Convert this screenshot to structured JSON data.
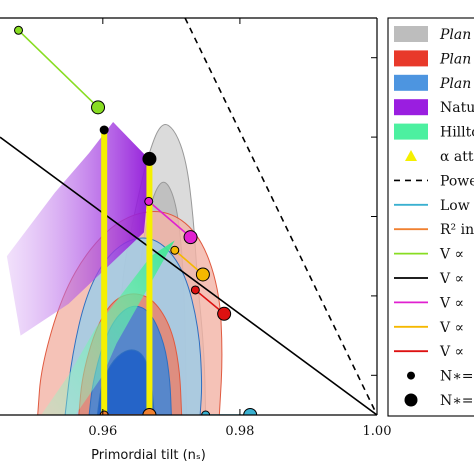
{
  "chart_data": {
    "type": "scatter",
    "title": "",
    "xlabel": "Primordial tilt (nₛ)",
    "ylabel": "",
    "xlim": [
      0.945,
      1.0
    ],
    "ylim": [
      0.0,
      0.1
    ],
    "xticks": [
      {
        "value": 0.96,
        "label": "0.96"
      },
      {
        "value": 0.98,
        "label": "0.98"
      },
      {
        "value": 1.0,
        "label": "1.00"
      }
    ],
    "legend_position": "right (partially cropped)",
    "legend": [
      {
        "label": "Plan",
        "kind": "patch",
        "color": "#bdbdbd",
        "italic": true
      },
      {
        "label": "Plan",
        "kind": "patch",
        "color": "#e8392a",
        "italic": true
      },
      {
        "label": "Plan",
        "kind": "patch",
        "color": "#4d95e0",
        "italic": true
      },
      {
        "label": "Natu",
        "kind": "patch",
        "color": "#9a1ee0",
        "italic": false
      },
      {
        "label": "Hillto",
        "kind": "patch",
        "color": "#4cf0a0",
        "italic": false
      },
      {
        "label": "α att",
        "kind": "triangle",
        "color": "#f5f000",
        "italic": false
      },
      {
        "label": "Powe",
        "kind": "dashed",
        "color": "#000000",
        "italic": false
      },
      {
        "label": "Low",
        "kind": "line",
        "color": "#3ab0d0",
        "italic": false
      },
      {
        "label": "R² in",
        "kind": "line",
        "color": "#f08030",
        "italic": false
      },
      {
        "label": "V ∝",
        "kind": "line",
        "color": "#88dd22",
        "italic": false
      },
      {
        "label": "V ∝",
        "kind": "line",
        "color": "#000000",
        "italic": false
      },
      {
        "label": "V ∝",
        "kind": "line",
        "color": "#e020d0",
        "italic": false
      },
      {
        "label": "V ∝",
        "kind": "line",
        "color": "#f5b800",
        "italic": false
      },
      {
        "label": "V ∝",
        "kind": "line",
        "color": "#dd1111",
        "italic": false
      },
      {
        "label": "N∗=",
        "kind": "dot-small",
        "color": "#000000",
        "italic": false
      },
      {
        "label": "N∗=",
        "kind": "dot-large",
        "color": "#000000",
        "italic": false
      }
    ],
    "contours": [
      {
        "name": "grey-outer",
        "color": "#cfcfcf",
        "opacity": 0.75,
        "points": [
          [
            0.9635,
            0.0
          ],
          [
            0.9625,
            0.018
          ],
          [
            0.9628,
            0.035
          ],
          [
            0.9645,
            0.05
          ],
          [
            0.9665,
            0.065
          ],
          [
            0.9685,
            0.074
          ],
          [
            0.9705,
            0.072
          ],
          [
            0.9722,
            0.064
          ],
          [
            0.9732,
            0.05
          ],
          [
            0.9738,
            0.034
          ],
          [
            0.9748,
            0.016
          ],
          [
            0.975,
            0.0
          ]
        ]
      },
      {
        "name": "grey-inner",
        "color": "#b5b5b5",
        "opacity": 0.7,
        "points": [
          [
            0.965,
            0.0
          ],
          [
            0.9647,
            0.02
          ],
          [
            0.9655,
            0.04
          ],
          [
            0.967,
            0.054
          ],
          [
            0.9688,
            0.06
          ],
          [
            0.9705,
            0.055
          ],
          [
            0.9715,
            0.043
          ],
          [
            0.972,
            0.025
          ],
          [
            0.9722,
            0.0
          ]
        ]
      },
      {
        "name": "red-outer",
        "color": "#f3b3a5",
        "opacity": 0.8,
        "points": [
          [
            0.9505,
            0.0
          ],
          [
            0.951,
            0.012
          ],
          [
            0.954,
            0.03
          ],
          [
            0.958,
            0.042
          ],
          [
            0.963,
            0.05
          ],
          [
            0.969,
            0.052
          ],
          [
            0.974,
            0.046
          ],
          [
            0.977,
            0.032
          ],
          [
            0.9775,
            0.015
          ],
          [
            0.977,
            0.0
          ]
        ]
      },
      {
        "name": "blue-outer",
        "color": "#9fcde8",
        "opacity": 0.85,
        "points": [
          [
            0.9545,
            0.0
          ],
          [
            0.9555,
            0.015
          ],
          [
            0.9575,
            0.03
          ],
          [
            0.9605,
            0.04
          ],
          [
            0.9645,
            0.045
          ],
          [
            0.9685,
            0.044
          ],
          [
            0.972,
            0.036
          ],
          [
            0.974,
            0.022
          ],
          [
            0.9745,
            0.008
          ],
          [
            0.9742,
            0.0
          ]
        ]
      },
      {
        "name": "red-inner",
        "color": "#ef7a60",
        "opacity": 0.75,
        "points": [
          [
            0.9565,
            0.0
          ],
          [
            0.957,
            0.01
          ],
          [
            0.959,
            0.022
          ],
          [
            0.9615,
            0.029
          ],
          [
            0.9645,
            0.031
          ],
          [
            0.9675,
            0.029
          ],
          [
            0.97,
            0.022
          ],
          [
            0.9712,
            0.012
          ],
          [
            0.9715,
            0.0
          ]
        ]
      },
      {
        "name": "blue-inner",
        "color": "#3f86d8",
        "opacity": 0.85,
        "points": [
          [
            0.958,
            0.0
          ],
          [
            0.9585,
            0.008
          ],
          [
            0.96,
            0.018
          ],
          [
            0.962,
            0.025
          ],
          [
            0.9645,
            0.028
          ],
          [
            0.967,
            0.026
          ],
          [
            0.969,
            0.018
          ],
          [
            0.9698,
            0.009
          ],
          [
            0.97,
            0.0
          ]
        ]
      },
      {
        "name": "blue-core",
        "color": "#2060c8",
        "opacity": 0.9,
        "points": [
          [
            0.9592,
            0.0
          ],
          [
            0.9598,
            0.008
          ],
          [
            0.9615,
            0.014
          ],
          [
            0.964,
            0.017
          ],
          [
            0.9662,
            0.015
          ],
          [
            0.9672,
            0.007
          ],
          [
            0.9675,
            0.0
          ]
        ]
      }
    ],
    "regions": [
      {
        "name": "natural-inflation",
        "color": "#9a1ee0",
        "points": [
          [
            0.9615,
            0.0738
          ],
          [
            0.967,
            0.064
          ],
          [
            0.966,
            0.046
          ],
          [
            0.955,
            0.028
          ],
          [
            0.948,
            0.02
          ],
          [
            0.946,
            0.04
          ],
          [
            0.953,
            0.056
          ],
          [
            0.958,
            0.066
          ]
        ]
      },
      {
        "name": "hilltop-inflation",
        "color": "#4cf0a0",
        "points": [
          [
            0.967,
            0.04
          ],
          [
            0.9705,
            0.044
          ],
          [
            0.962,
            0.018
          ],
          [
            0.96,
            0.01
          ],
          [
            0.956,
            0.0
          ],
          [
            0.951,
            0.0
          ],
          [
            0.955,
            0.01
          ],
          [
            0.959,
            0.022
          ]
        ]
      }
    ],
    "series": [
      {
        "name": "",
        "type": "line",
        "color": "#000000",
        "dash": "6,5",
        "points": [
          [
            0.972,
            0.1
          ],
          [
            1.0,
            0.0
          ]
        ]
      },
      {
        "name": "",
        "type": "line",
        "color": "#000000",
        "points": [
          [
            0.945,
            0.07
          ],
          [
            1.0,
            0.0
          ]
        ]
      },
      {
        "name": "",
        "type": "line",
        "color": "#88dd22",
        "points": [
          [
            0.9477,
            0.0969
          ],
          [
            0.9593,
            0.0775
          ]
        ]
      },
      {
        "name": "",
        "type": "line",
        "color": "#e020d0",
        "points": [
          [
            0.9667,
            0.0538
          ],
          [
            0.9728,
            0.0448
          ]
        ]
      },
      {
        "name": "",
        "type": "line",
        "color": "#f5b800",
        "points": [
          [
            0.9705,
            0.0415
          ],
          [
            0.9746,
            0.0354
          ]
        ]
      },
      {
        "name": "",
        "type": "line",
        "color": "#dd1111",
        "points": [
          [
            0.9735,
            0.0315
          ],
          [
            0.9777,
            0.0255
          ]
        ]
      },
      {
        "name": "",
        "type": "line",
        "color": "#3ab0d0",
        "points": [
          [
            0.975,
            0.0
          ],
          [
            0.9815,
            0.0
          ]
        ]
      },
      {
        "name": "",
        "type": "line",
        "color": "#f08030",
        "points": [
          [
            0.9602,
            0.0
          ],
          [
            0.9668,
            0.0
          ]
        ]
      }
    ],
    "markers": [
      {
        "x": 0.9477,
        "y": 0.0969,
        "size": "small",
        "fill": "#88dd22"
      },
      {
        "x": 0.9593,
        "y": 0.0775,
        "size": "large",
        "fill": "#88dd22"
      },
      {
        "x": 0.9602,
        "y": 0.0718,
        "size": "small",
        "fill": "#000000"
      },
      {
        "x": 0.9668,
        "y": 0.0645,
        "size": "large",
        "fill": "#000000"
      },
      {
        "x": 0.9667,
        "y": 0.0538,
        "size": "small",
        "fill": "#e020d0"
      },
      {
        "x": 0.9728,
        "y": 0.0448,
        "size": "large",
        "fill": "#e020d0"
      },
      {
        "x": 0.9705,
        "y": 0.0415,
        "size": "small",
        "fill": "#f5b800"
      },
      {
        "x": 0.9746,
        "y": 0.0354,
        "size": "large",
        "fill": "#f5b800"
      },
      {
        "x": 0.9735,
        "y": 0.0315,
        "size": "small",
        "fill": "#dd1111"
      },
      {
        "x": 0.9777,
        "y": 0.0255,
        "size": "large",
        "fill": "#dd1111"
      },
      {
        "x": 0.9602,
        "y": 0.0,
        "size": "small",
        "fill": "#f08030"
      },
      {
        "x": 0.9668,
        "y": 0.0,
        "size": "large",
        "fill": "#f08030"
      },
      {
        "x": 0.975,
        "y": 0.0,
        "size": "small",
        "fill": "#3ab0d0"
      },
      {
        "x": 0.9815,
        "y": 0.0,
        "size": "large",
        "fill": "#3ab0d0"
      }
    ],
    "yellow_bars": [
      {
        "x": 0.9602,
        "y0": 0.0,
        "y1": 0.0718
      },
      {
        "x": 0.9668,
        "y0": 0.0,
        "y1": 0.0645
      }
    ]
  }
}
